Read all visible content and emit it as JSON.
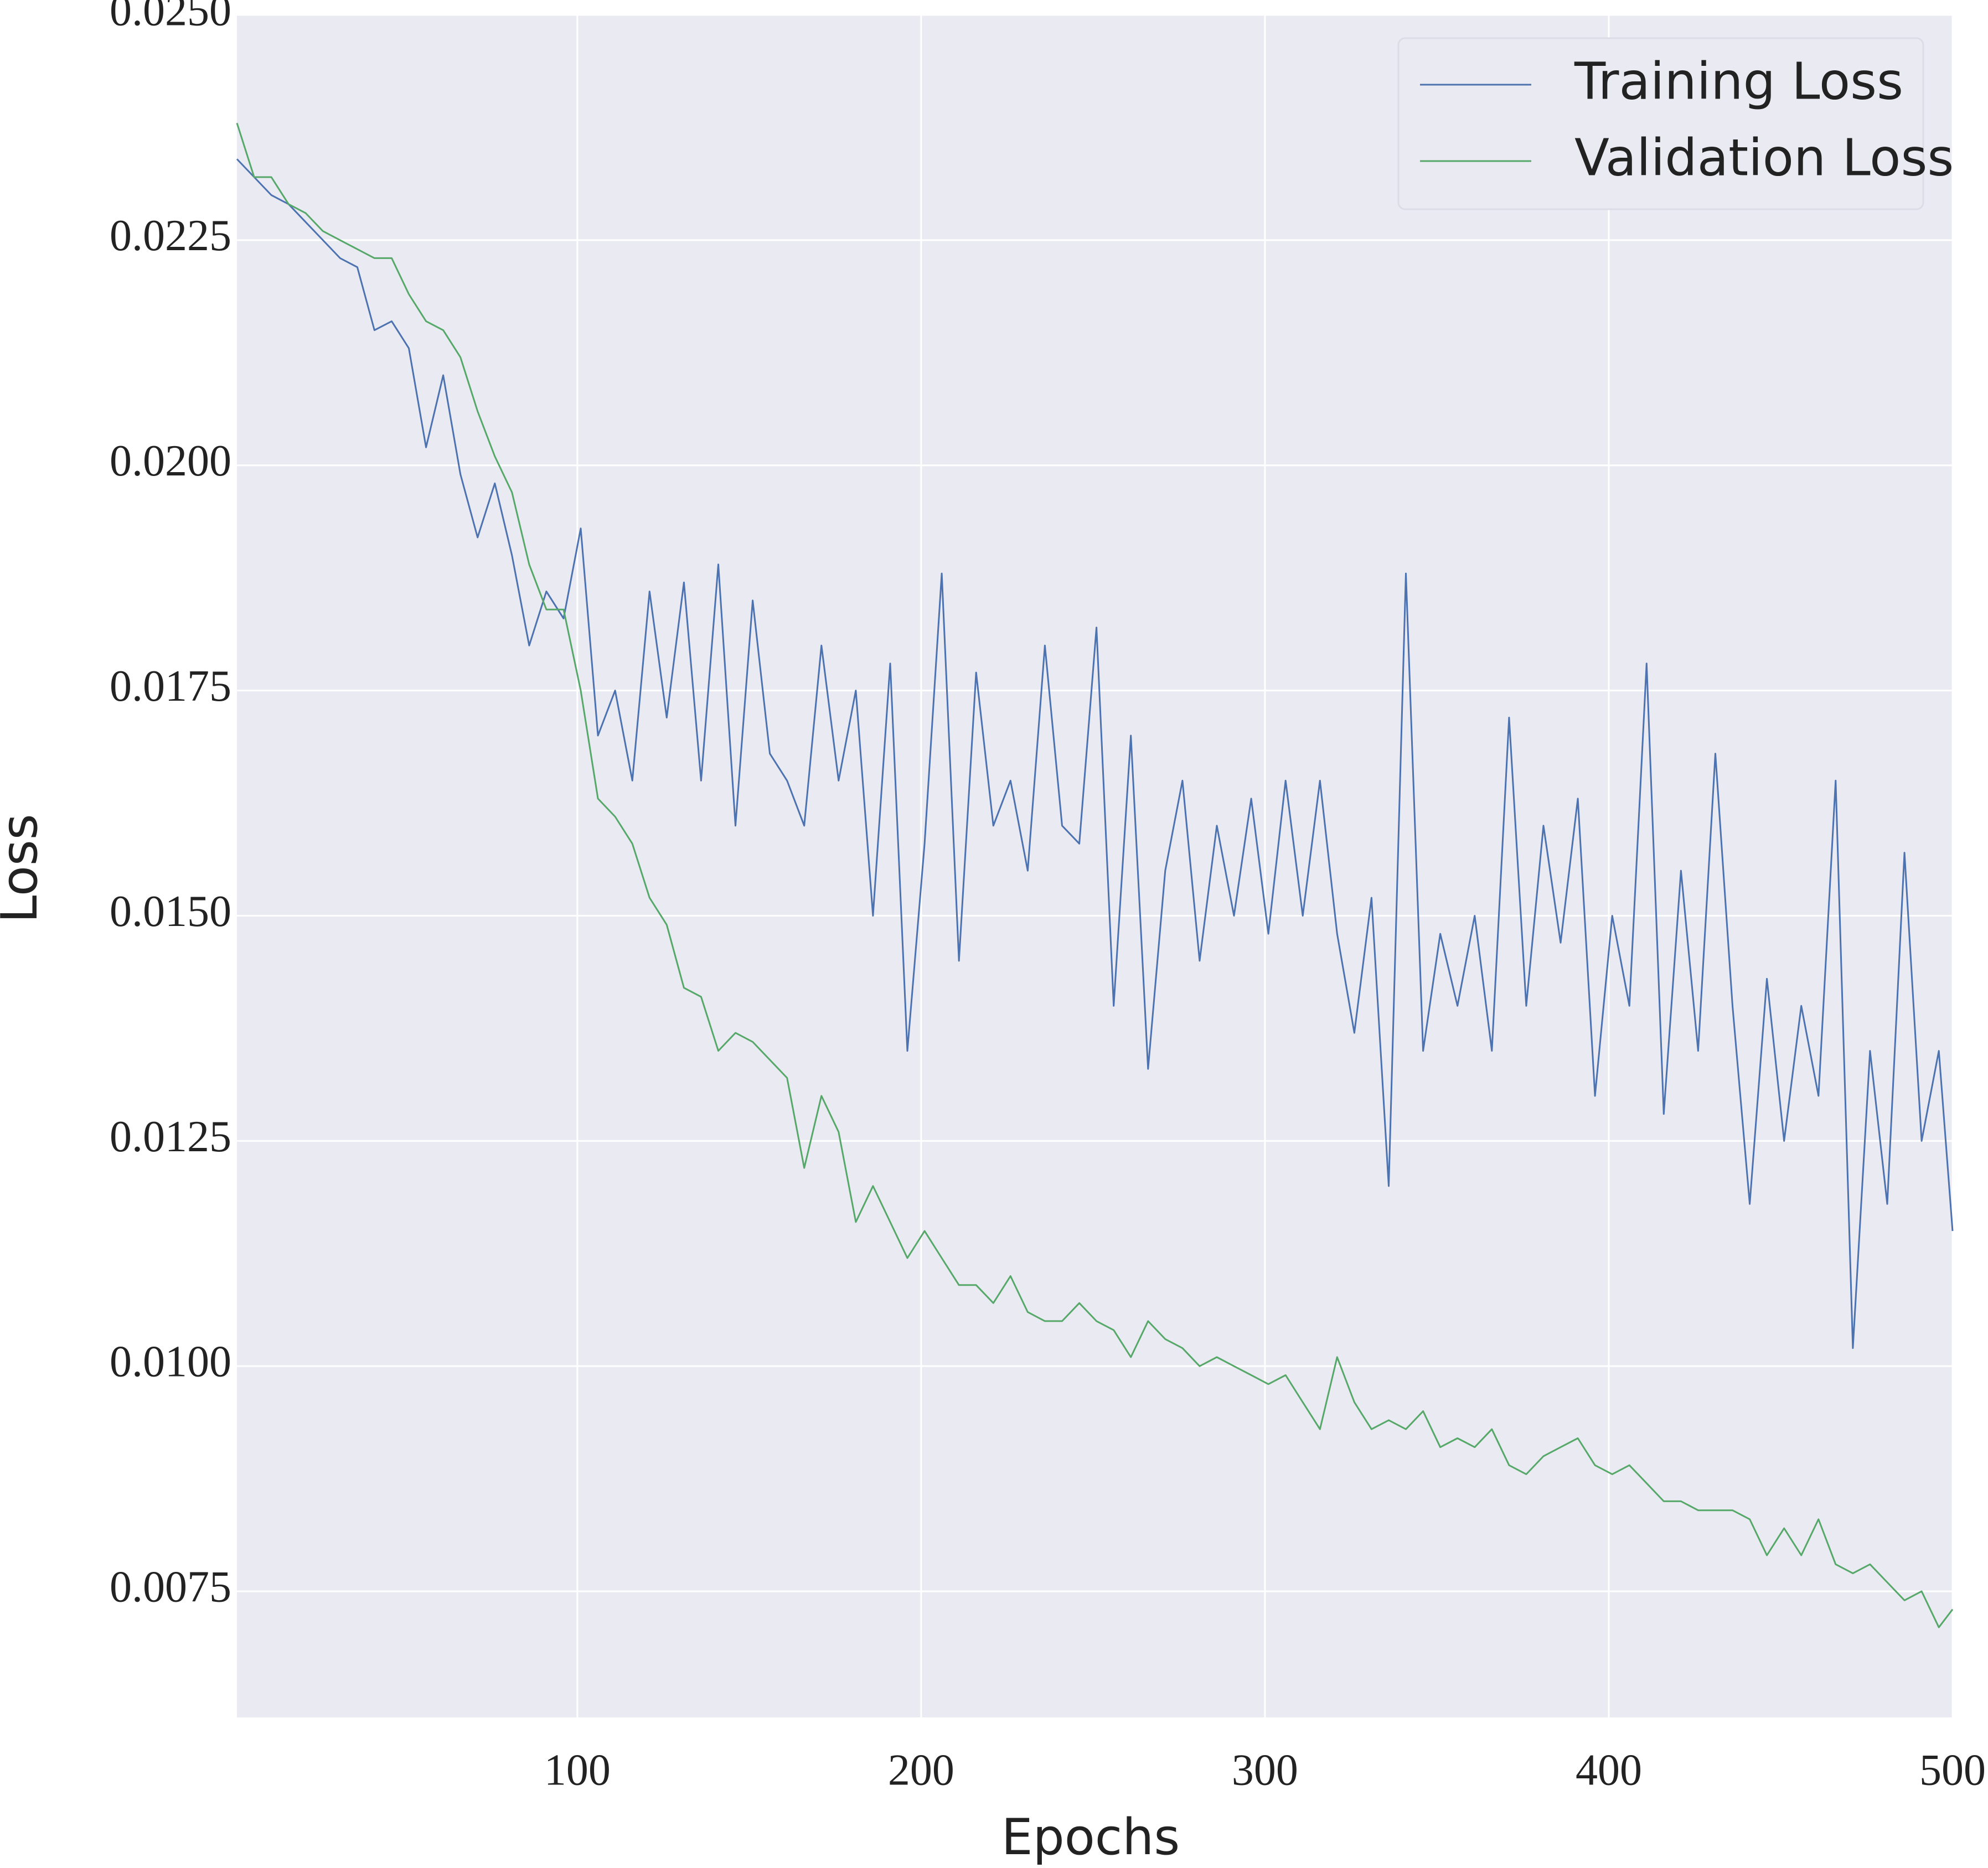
{
  "chart_data": {
    "type": "line",
    "x_label": "Epochs",
    "y_label": "Loss",
    "x": [
      1,
      6,
      11,
      16,
      21,
      26,
      31,
      36,
      41,
      46,
      51,
      56,
      61,
      66,
      71,
      76,
      81,
      86,
      91,
      96,
      101,
      106,
      111,
      116,
      121,
      126,
      131,
      136,
      141,
      146,
      151,
      156,
      161,
      166,
      171,
      176,
      181,
      186,
      191,
      196,
      201,
      206,
      211,
      216,
      221,
      226,
      231,
      236,
      241,
      246,
      251,
      256,
      261,
      266,
      271,
      276,
      281,
      286,
      291,
      296,
      301,
      306,
      311,
      316,
      321,
      326,
      331,
      336,
      341,
      346,
      351,
      356,
      361,
      366,
      371,
      376,
      381,
      386,
      391,
      396,
      401,
      406,
      411,
      416,
      421,
      426,
      431,
      436,
      441,
      446,
      451,
      456,
      461,
      466,
      471,
      476,
      481,
      486,
      491,
      496,
      500
    ],
    "series": [
      {
        "name": "Training Loss",
        "color": "#4c72b0",
        "values": [
          0.0234,
          0.0232,
          0.023,
          0.0229,
          0.0227,
          0.0225,
          0.0223,
          0.0222,
          0.0215,
          0.0216,
          0.0213,
          0.0202,
          0.021,
          0.0199,
          0.0192,
          0.0198,
          0.019,
          0.018,
          0.0186,
          0.0183,
          0.0193,
          0.017,
          0.0175,
          0.0165,
          0.0186,
          0.0172,
          0.0187,
          0.0165,
          0.0189,
          0.016,
          0.0185,
          0.0168,
          0.0165,
          0.016,
          0.018,
          0.0165,
          0.0175,
          0.015,
          0.0178,
          0.0135,
          0.0158,
          0.0188,
          0.0145,
          0.0177,
          0.016,
          0.0165,
          0.0155,
          0.018,
          0.016,
          0.0158,
          0.0182,
          0.014,
          0.017,
          0.0133,
          0.0155,
          0.0165,
          0.0145,
          0.016,
          0.015,
          0.0163,
          0.0148,
          0.0165,
          0.015,
          0.0165,
          0.0148,
          0.0137,
          0.0152,
          0.012,
          0.0188,
          0.0135,
          0.0148,
          0.014,
          0.015,
          0.0135,
          0.0172,
          0.014,
          0.016,
          0.0147,
          0.0163,
          0.013,
          0.015,
          0.014,
          0.0178,
          0.0128,
          0.0155,
          0.0135,
          0.0168,
          0.014,
          0.0118,
          0.0143,
          0.0125,
          0.014,
          0.013,
          0.0165,
          0.0102,
          0.0135,
          0.0118,
          0.0157,
          0.0125,
          0.0135,
          0.0115
        ]
      },
      {
        "name": "Validation Loss",
        "color": "#55a868",
        "values": [
          0.0238,
          0.0232,
          0.0232,
          0.0229,
          0.0228,
          0.0226,
          0.0225,
          0.0224,
          0.0223,
          0.0223,
          0.0219,
          0.0216,
          0.0215,
          0.0212,
          0.0206,
          0.0201,
          0.0197,
          0.0189,
          0.0184,
          0.0184,
          0.0175,
          0.0163,
          0.0161,
          0.0158,
          0.0152,
          0.0149,
          0.0142,
          0.0141,
          0.0135,
          0.0137,
          0.0136,
          0.0134,
          0.0132,
          0.0122,
          0.013,
          0.0126,
          0.0116,
          0.012,
          0.0116,
          0.0112,
          0.0115,
          0.0112,
          0.0109,
          0.0109,
          0.0107,
          0.011,
          0.0106,
          0.0105,
          0.0105,
          0.0107,
          0.0105,
          0.0104,
          0.0101,
          0.0105,
          0.0103,
          0.0102,
          0.01,
          0.0101,
          0.01,
          0.0099,
          0.0098,
          0.0099,
          0.0096,
          0.0093,
          0.0101,
          0.0096,
          0.0093,
          0.0094,
          0.0093,
          0.0095,
          0.0091,
          0.0092,
          0.0091,
          0.0093,
          0.0089,
          0.0088,
          0.009,
          0.0091,
          0.0092,
          0.0089,
          0.0088,
          0.0089,
          0.0087,
          0.0085,
          0.0085,
          0.0084,
          0.0084,
          0.0084,
          0.0083,
          0.0079,
          0.0082,
          0.0079,
          0.0083,
          0.0078,
          0.0077,
          0.0078,
          0.0076,
          0.0074,
          0.0075,
          0.0071,
          0.0073
        ]
      }
    ],
    "xlim": [
      1,
      500
    ],
    "ylim": [
      0.0061,
      0.025
    ],
    "xticks": [
      100,
      200,
      300,
      400,
      500
    ],
    "yticks": [
      {
        "value": 0.0075,
        "label": "0.0075"
      },
      {
        "value": 0.01,
        "label": "0.0100"
      },
      {
        "value": 0.0125,
        "label": "0.0125"
      },
      {
        "value": 0.015,
        "label": "0.0150"
      },
      {
        "value": 0.0175,
        "label": "0.0175"
      },
      {
        "value": 0.02,
        "label": "0.0200"
      },
      {
        "value": 0.0225,
        "label": "0.0225"
      },
      {
        "value": 0.025,
        "label": "0.0250"
      }
    ],
    "grid": true,
    "legend": "upper right"
  }
}
